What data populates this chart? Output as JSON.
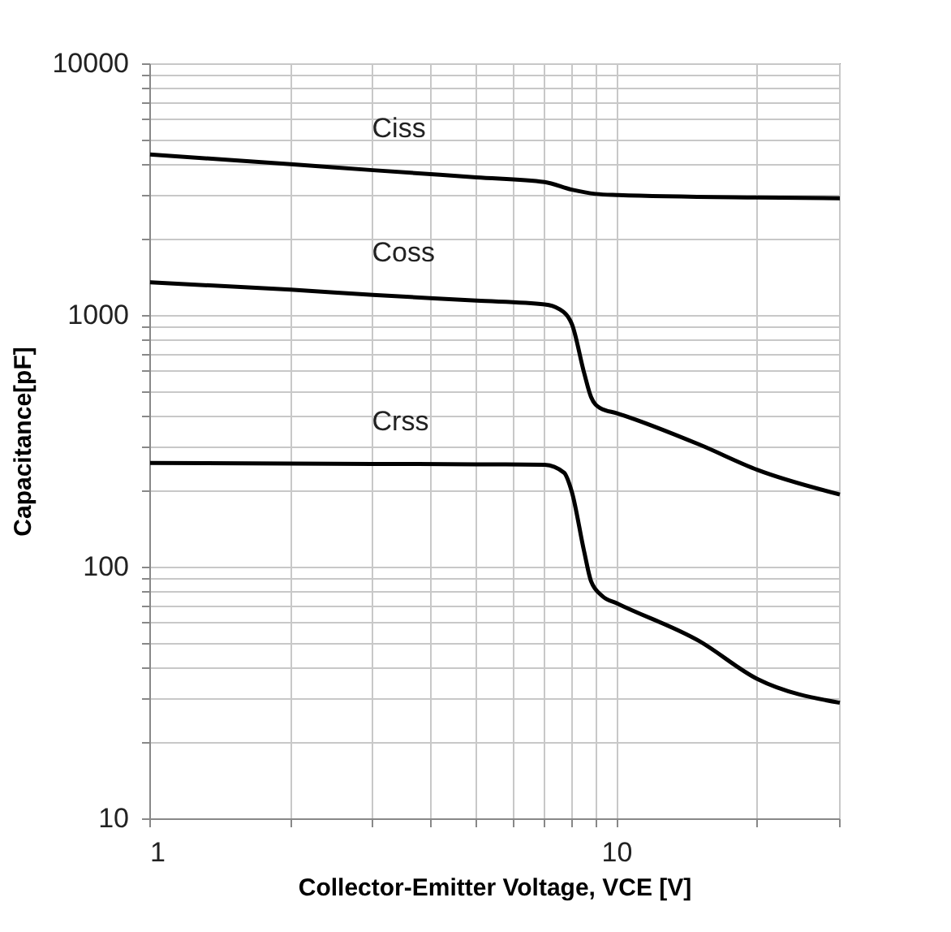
{
  "chart_data": {
    "type": "line",
    "xlabel": "Collector-Emitter Voltage, VCE [V]",
    "ylabel": "Capacitance[pF]",
    "log": "xy",
    "grid": true,
    "legend": false,
    "marker": "none",
    "line_style": "solid",
    "xlim": [
      1,
      30
    ],
    "ylim": [
      10,
      10000
    ],
    "xticks": [
      1,
      {
        "value": 2,
        "label": null
      },
      {
        "value": 3,
        "label": null
      },
      {
        "value": 4,
        "label": null
      },
      {
        "value": 5,
        "label": null
      },
      {
        "value": 6,
        "label": null
      },
      {
        "value": 7,
        "label": null
      },
      {
        "value": 8,
        "label": null
      },
      {
        "value": 9,
        "label": null
      },
      10,
      {
        "value": 20,
        "label": null
      },
      {
        "value": 30,
        "label": null
      }
    ],
    "yticks": [
      10,
      {
        "value": 20,
        "label": null
      },
      {
        "value": 30,
        "label": null
      },
      {
        "value": 40,
        "label": null
      },
      {
        "value": 50,
        "label": null
      },
      {
        "value": 60,
        "label": null
      },
      {
        "value": 70,
        "label": null
      },
      {
        "value": 80,
        "label": null
      },
      {
        "value": 90,
        "label": null
      },
      100,
      {
        "value": 200,
        "label": null
      },
      {
        "value": 300,
        "label": null
      },
      {
        "value": 400,
        "label": null
      },
      {
        "value": 500,
        "label": null
      },
      {
        "value": 600,
        "label": null
      },
      {
        "value": 700,
        "label": null
      },
      {
        "value": 800,
        "label": null
      },
      {
        "value": 900,
        "label": null
      },
      1000,
      {
        "value": 2000,
        "label": null
      },
      {
        "value": 3000,
        "label": null
      },
      {
        "value": 4000,
        "label": null
      },
      {
        "value": 5000,
        "label": null
      },
      {
        "value": 6000,
        "label": null
      },
      {
        "value": 7000,
        "label": null
      },
      {
        "value": 8000,
        "label": null
      },
      {
        "value": 9000,
        "label": null
      },
      10000
    ],
    "series": [
      {
        "name": "Ciss",
        "color": "#000000",
        "x": [
          1,
          2,
          3,
          5,
          7,
          8,
          9,
          10,
          20,
          30
        ],
        "values": [
          4375,
          4000,
          3790,
          3550,
          3400,
          3170,
          3050,
          3020,
          2950,
          2930
        ]
      },
      {
        "name": "Coss",
        "color": "#000000",
        "x": [
          1,
          2,
          3,
          5,
          7,
          7.5,
          8,
          8.5,
          8.8,
          9.2,
          10,
          15,
          20,
          30
        ],
        "values": [
          1360,
          1270,
          1210,
          1150,
          1110,
          1067,
          929,
          594,
          475,
          430,
          410,
          308,
          244,
          195
        ]
      },
      {
        "name": "Crss",
        "color": "#000000",
        "x": [
          1,
          2,
          3,
          5,
          7,
          7.7,
          8,
          8.5,
          8.8,
          9.3,
          10,
          15,
          20,
          30
        ],
        "values": [
          260,
          259,
          258,
          257,
          256,
          238,
          200,
          116,
          88,
          77,
          72,
          51,
          36,
          29
        ]
      }
    ]
  }
}
